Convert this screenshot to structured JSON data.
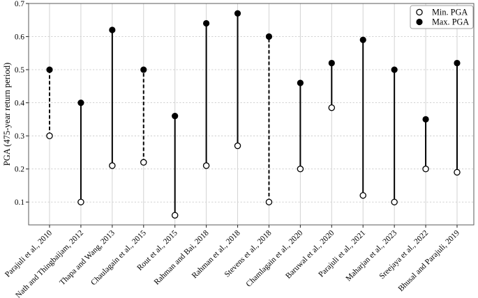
{
  "figure": {
    "background": "#ffffff"
  },
  "chart_data": {
    "type": "lollipop-range",
    "title": "",
    "xlabel": "",
    "ylabel": "PGA (475-year return period)",
    "ylim": [
      0.031,
      0.7
    ],
    "yticks": [
      "0.1",
      "0.2",
      "0.3",
      "0.4",
      "0.5",
      "0.6",
      "0.7"
    ],
    "ytick_values": [
      0.1,
      0.2,
      0.3,
      0.4,
      0.5,
      0.6,
      0.7
    ],
    "grid": {
      "horizontal_style": "dashed",
      "vertical_style": "solid",
      "horizontal_color": "#c9c9c9",
      "vertical_color": "#d2d2d2"
    },
    "legend": {
      "position": "upper-right",
      "entries": [
        {
          "marker": "open-circle",
          "label": "Min. PGA"
        },
        {
          "marker": "filled-circle",
          "label": "Max. PGA"
        }
      ]
    },
    "categories": [
      "Parajuli et al., 2010",
      "Nath and Thingbaijam, 2012",
      "Thapa and Wang, 2013",
      "Chaulagain et al., 2015",
      "Rout et al., 2015",
      "Rahman and Bai, 2018",
      "Rahman et al., 2018",
      "Stevens et al., 2018",
      "Chamlagain et al., 2020",
      "Baruwal et al., 2020",
      "Parajuli et al., 2021",
      "Maharjan et al., 2023",
      "Sreejaya et al., 2022",
      "Bhusal and Parajuli, 2019"
    ],
    "series": [
      {
        "name": "Min. PGA",
        "marker": "open-circle",
        "values": [
          0.3,
          0.1,
          0.21,
          0.22,
          0.06,
          0.21,
          0.27,
          0.1,
          0.2,
          0.385,
          0.12,
          0.1,
          0.2,
          0.19
        ]
      },
      {
        "name": "Max. PGA",
        "marker": "filled-circle",
        "values": [
          0.5,
          0.4,
          0.62,
          0.5,
          0.36,
          0.64,
          0.67,
          0.6,
          0.46,
          0.52,
          0.59,
          0.5,
          0.35,
          0.52
        ]
      }
    ],
    "stem_styles": [
      "dashed",
      "solid",
      "solid",
      "dashed",
      "solid",
      "solid",
      "solid",
      "dashed",
      "solid",
      "solid",
      "solid",
      "solid",
      "solid",
      "solid"
    ],
    "colors": {
      "stem": "#000000",
      "marker": "#000000",
      "axis_box": "#5a5a5a",
      "tick": "#333333"
    }
  }
}
